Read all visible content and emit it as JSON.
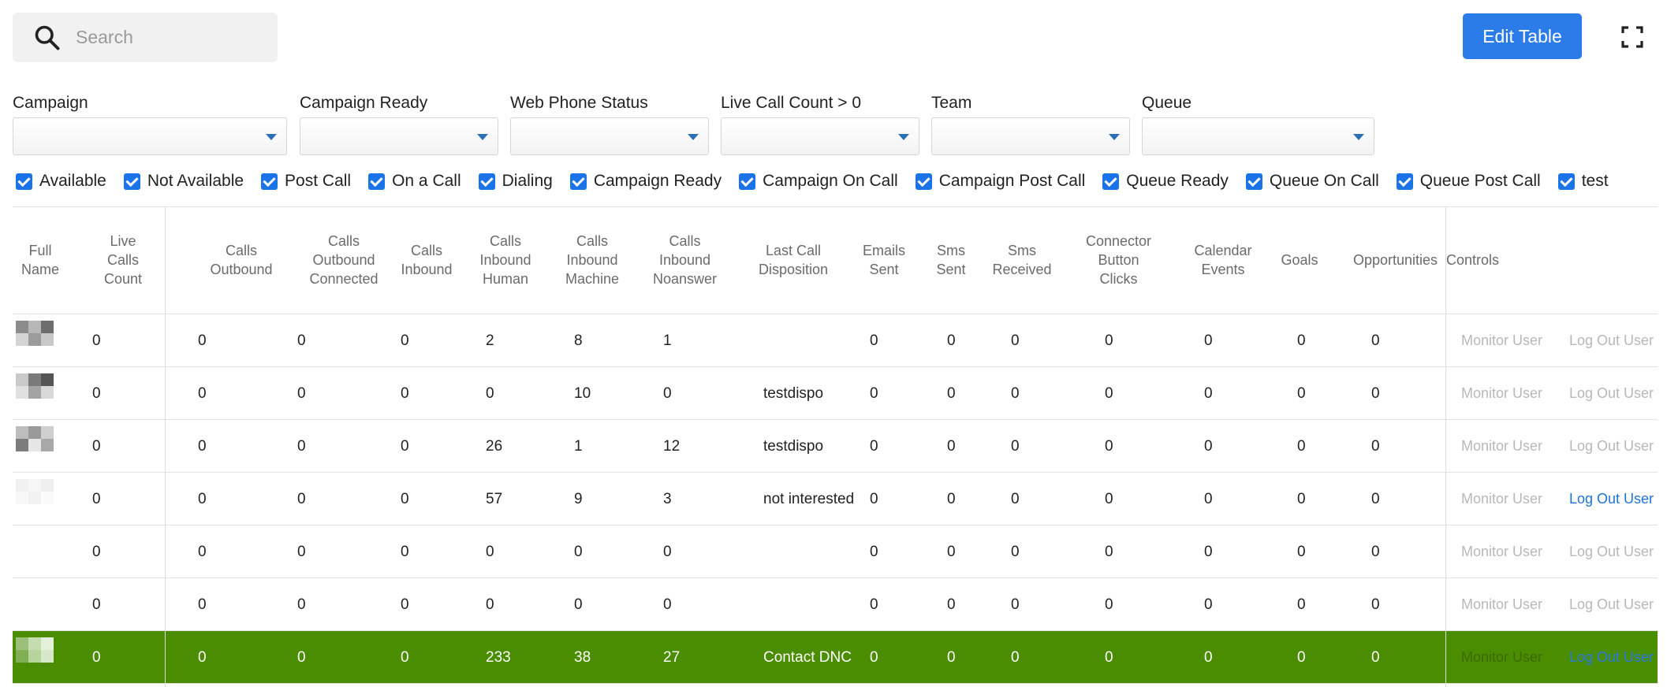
{
  "search": {
    "placeholder": "Search",
    "icon": "search-icon"
  },
  "toolbar": {
    "edit_table_label": "Edit Table",
    "expand_icon": "fullscreen-icon"
  },
  "filters": [
    {
      "label": "Campaign",
      "value": ""
    },
    {
      "label": "Campaign Ready",
      "value": ""
    },
    {
      "label": "Web Phone Status",
      "value": ""
    },
    {
      "label": "Live Call Count > 0",
      "value": ""
    },
    {
      "label": "Team",
      "value": ""
    },
    {
      "label": "Queue",
      "value": ""
    }
  ],
  "status_checks": [
    {
      "label": "Available",
      "checked": true
    },
    {
      "label": "Not Available",
      "checked": true
    },
    {
      "label": "Post Call",
      "checked": true
    },
    {
      "label": "On a Call",
      "checked": true
    },
    {
      "label": "Dialing",
      "checked": true
    },
    {
      "label": "Campaign Ready",
      "checked": true
    },
    {
      "label": "Campaign On Call",
      "checked": true
    },
    {
      "label": "Campaign Post Call",
      "checked": true
    },
    {
      "label": "Queue Ready",
      "checked": true
    },
    {
      "label": "Queue On Call",
      "checked": true
    },
    {
      "label": "Queue Post Call",
      "checked": true
    },
    {
      "label": "test",
      "checked": true
    }
  ],
  "table": {
    "columns": [
      "Full\nName",
      "Live\nCalls\nCount",
      "Calls\nOutbound",
      "Calls\nOutbound\nConnected",
      "Calls\nInbound",
      "Calls\nInbound\nHuman",
      "Calls\nInbound\nMachine",
      "Calls\nInbound\nNoanswer",
      "Last Call\nDisposition",
      "Emails\nSent",
      "Sms\nSent",
      "Sms\nReceived",
      "Connector\nButton\nClicks",
      "Calendar\nEvents",
      "Goals",
      "Opportunities",
      "Controls"
    ],
    "controls": {
      "monitor_label": "Monitor User",
      "logout_label": "Log Out User"
    },
    "rows": [
      {
        "live": "0",
        "out": "0",
        "out_conn": "0",
        "inb": "0",
        "human": "2",
        "machine": "8",
        "noans": "1",
        "dispo": "",
        "emails": "0",
        "sms_sent": "0",
        "sms_recv": "0",
        "clicks": "0",
        "cal": "0",
        "goals": "0",
        "opps": "0",
        "logout_active": false,
        "highlight": false
      },
      {
        "live": "0",
        "out": "0",
        "out_conn": "0",
        "inb": "0",
        "human": "0",
        "machine": "10",
        "noans": "0",
        "dispo": "testdispo",
        "emails": "0",
        "sms_sent": "0",
        "sms_recv": "0",
        "clicks": "0",
        "cal": "0",
        "goals": "0",
        "opps": "0",
        "logout_active": false,
        "highlight": false
      },
      {
        "live": "0",
        "out": "0",
        "out_conn": "0",
        "inb": "0",
        "human": "26",
        "machine": "1",
        "noans": "12",
        "dispo": "testdispo",
        "emails": "0",
        "sms_sent": "0",
        "sms_recv": "0",
        "clicks": "0",
        "cal": "0",
        "goals": "0",
        "opps": "0",
        "logout_active": false,
        "highlight": false
      },
      {
        "live": "0",
        "out": "0",
        "out_conn": "0",
        "inb": "0",
        "human": "57",
        "machine": "9",
        "noans": "3",
        "dispo": "not interested",
        "emails": "0",
        "sms_sent": "0",
        "sms_recv": "0",
        "clicks": "0",
        "cal": "0",
        "goals": "0",
        "opps": "0",
        "logout_active": true,
        "highlight": false
      },
      {
        "live": "0",
        "out": "0",
        "out_conn": "0",
        "inb": "0",
        "human": "0",
        "machine": "0",
        "noans": "0",
        "dispo": "",
        "emails": "0",
        "sms_sent": "0",
        "sms_recv": "0",
        "clicks": "0",
        "cal": "0",
        "goals": "0",
        "opps": "0",
        "logout_active": false,
        "highlight": false
      },
      {
        "live": "0",
        "out": "0",
        "out_conn": "0",
        "inb": "0",
        "human": "0",
        "machine": "0",
        "noans": "0",
        "dispo": "",
        "emails": "0",
        "sms_sent": "0",
        "sms_recv": "0",
        "clicks": "0",
        "cal": "0",
        "goals": "0",
        "opps": "0",
        "logout_active": false,
        "highlight": false
      },
      {
        "live": "0",
        "out": "0",
        "out_conn": "0",
        "inb": "0",
        "human": "233",
        "machine": "38",
        "noans": "27",
        "dispo": "Contact DNC",
        "emails": "0",
        "sms_sent": "0",
        "sms_recv": "0",
        "clicks": "0",
        "cal": "0",
        "goals": "0",
        "opps": "0",
        "logout_active": true,
        "highlight": true
      }
    ]
  },
  "colors": {
    "accent": "#2b7ce9",
    "checkbox": "#1a73e8",
    "highlight_row": "#4a8d00",
    "link_active": "#1e73d8",
    "link_muted": "#b8b8b8"
  }
}
